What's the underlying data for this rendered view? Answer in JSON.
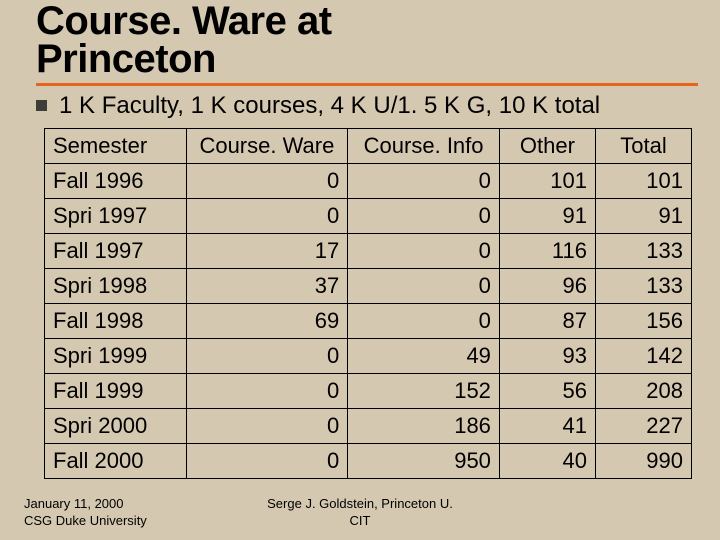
{
  "title_line1": "Course. Ware at",
  "title_line2": "Princeton",
  "subtitle": "1 K Faculty, 1 K courses, 4 K U/1. 5 K G, 10 K total",
  "table": {
    "columns": [
      "Semester",
      "Course. Ware",
      "Course. Info",
      "Other",
      "Total"
    ],
    "rows": [
      [
        "Fall 1996",
        "0",
        "0",
        "101",
        "101"
      ],
      [
        "Spri 1997",
        "0",
        "0",
        "91",
        "91"
      ],
      [
        "Fall 1997",
        "17",
        "0",
        "116",
        "133"
      ],
      [
        "Spri 1998",
        "37",
        "0",
        "96",
        "133"
      ],
      [
        "Fall 1998",
        "69",
        "0",
        "87",
        "156"
      ],
      [
        "Spri 1999",
        "0",
        "49",
        "93",
        "142"
      ],
      [
        "Fall 1999",
        "0",
        "152",
        "56",
        "208"
      ],
      [
        "Spri 2000",
        "0",
        "186",
        "41",
        "227"
      ],
      [
        "Fall 2000",
        "0",
        "950",
        "40",
        "990"
      ]
    ],
    "col_align": [
      "left",
      "right",
      "right",
      "right",
      "right"
    ],
    "header_align": [
      "left",
      "center",
      "center",
      "center",
      "center"
    ],
    "border_color": "#000000",
    "font_size": 22
  },
  "footer": {
    "left_line1": "January 11, 2000",
    "left_line2": "CSG Duke University",
    "center_line1": "Serge J. Goldstein, Princeton U.",
    "center_line2": "CIT"
  },
  "colors": {
    "background": "#d5c8b1",
    "accent": "#e8641b",
    "bullet": "#3e3e38",
    "text": "#000000"
  }
}
